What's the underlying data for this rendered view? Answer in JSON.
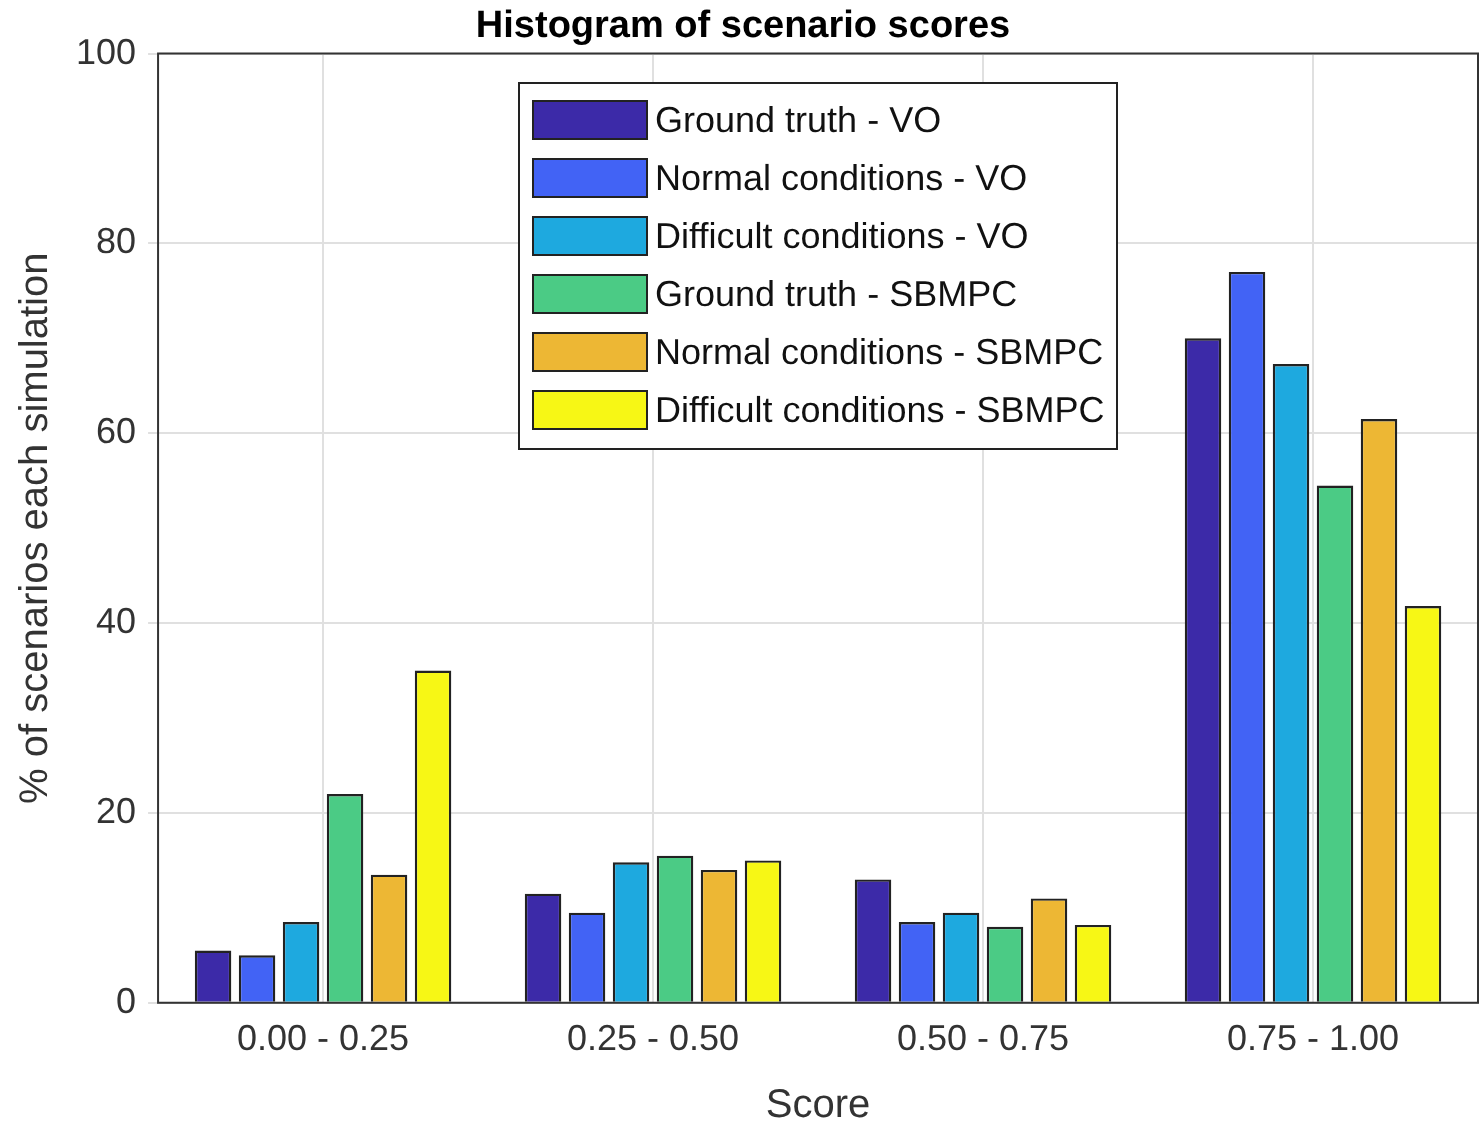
{
  "chart_data": {
    "type": "bar",
    "title": "Histogram of scenario scores",
    "xlabel": "Score",
    "ylabel": "% of scenarios each simulation",
    "categories": [
      "0.00 - 0.25",
      "0.25 - 0.50",
      "0.50 - 0.75",
      "0.75 - 1.00"
    ],
    "series": [
      {
        "name": "Ground truth - VO",
        "color": "#3c2aa8",
        "values": [
          5.5,
          11.5,
          13,
          70
        ]
      },
      {
        "name": "Normal conditions - VO",
        "color": "#4263f5",
        "values": [
          5,
          9.5,
          8.5,
          77
        ]
      },
      {
        "name": "Difficult conditions - VO",
        "color": "#1ea9df",
        "values": [
          8.5,
          14.8,
          9.5,
          67.3
        ]
      },
      {
        "name": "Ground truth - SBMPC",
        "color": "#4bcb85",
        "values": [
          22,
          15.5,
          8,
          54.5
        ]
      },
      {
        "name": "Normal conditions - SBMPC",
        "color": "#edb734",
        "values": [
          13.5,
          14,
          11,
          61.5
        ]
      },
      {
        "name": "Difficult conditions - SBMPC",
        "color": "#f7f715",
        "values": [
          35,
          15,
          8.2,
          41.8
        ]
      }
    ],
    "ylim": [
      0,
      100
    ],
    "yticks": [
      0,
      20,
      40,
      60,
      80,
      100
    ],
    "grid": true,
    "legend": "top"
  }
}
